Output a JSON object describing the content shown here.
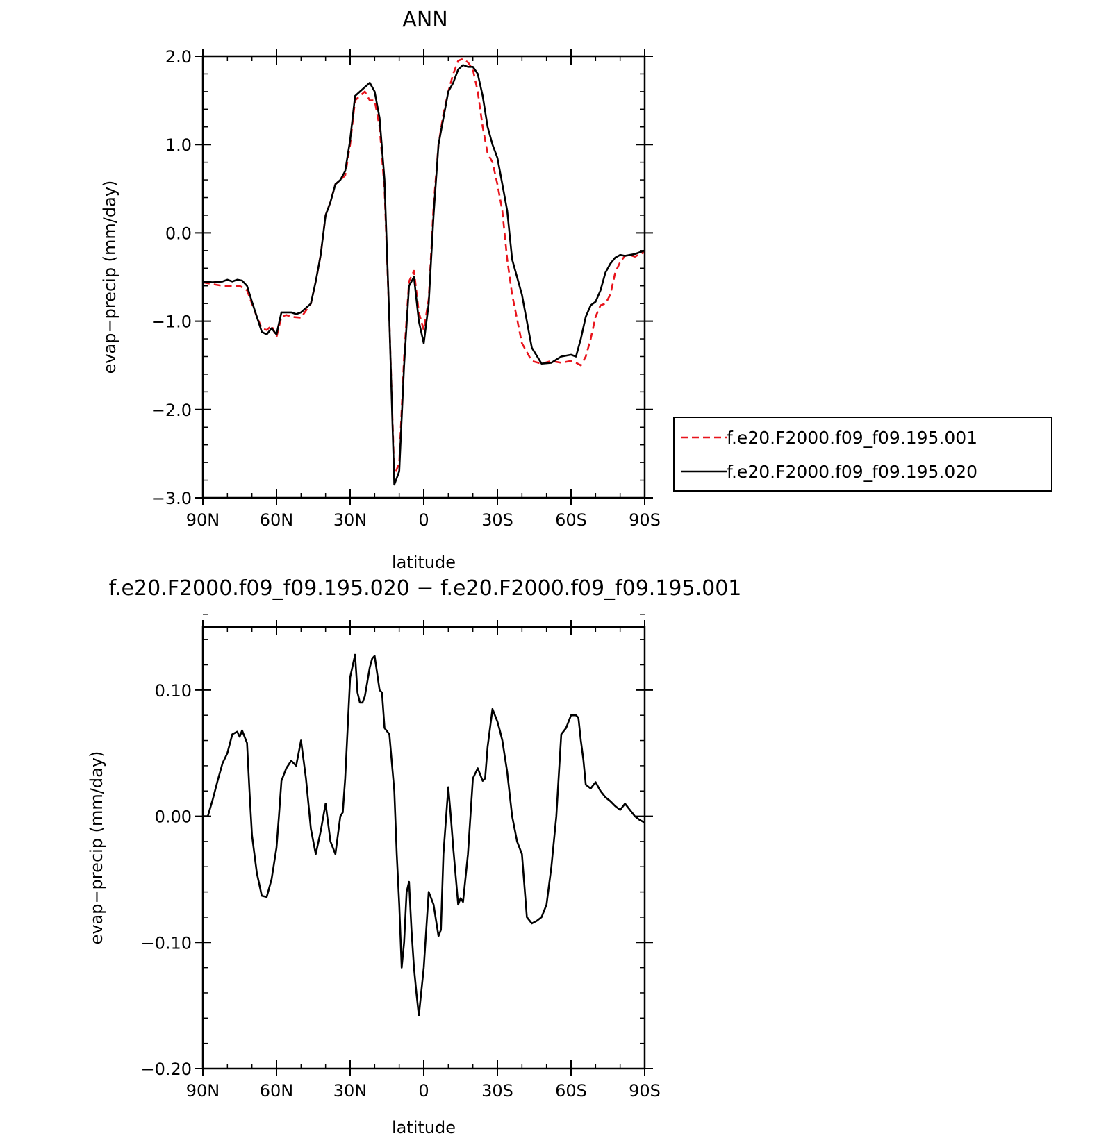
{
  "chart_data": [
    {
      "type": "line",
      "title": "ANN",
      "xlabel": "latitude",
      "ylabel": "evap−precip (mm/day)",
      "xlim": [
        90,
        -90
      ],
      "ylim": [
        -3.0,
        2.0
      ],
      "x_ticks": [
        90,
        60,
        30,
        0,
        -30,
        -60,
        -90
      ],
      "x_tick_labels": [
        "90N",
        "60N",
        "30N",
        "0",
        "30S",
        "60S",
        "90S"
      ],
      "y_ticks": [
        -3.0,
        -2.0,
        -1.0,
        0.0,
        1.0,
        2.0
      ],
      "y_tick_labels": [
        "−3.0",
        "−2.0",
        "−1.0",
        "0.0",
        "1.0",
        "2.0"
      ],
      "grid": false,
      "legend_position": "right",
      "series": [
        {
          "name": "f.e20.F2000.f09_f09.195.001",
          "color": "#e8141c",
          "dash": "dashed",
          "x": [
            90,
            86,
            82,
            78,
            75,
            72,
            70,
            68,
            66,
            64,
            62,
            60,
            58,
            56,
            54,
            50,
            46,
            44,
            42,
            40,
            38,
            36,
            34,
            32,
            30,
            28,
            26,
            24,
            22,
            20,
            18,
            16,
            14,
            12,
            10,
            8,
            6,
            4,
            2,
            0,
            -2,
            -4,
            -6,
            -8,
            -10,
            -12,
            -14,
            -16,
            -18,
            -20,
            -22,
            -24,
            -26,
            -28,
            -30,
            -32,
            -34,
            -36,
            -40,
            -44,
            -48,
            -52,
            -56,
            -60,
            -62,
            -64,
            -66,
            -68,
            -70,
            -72,
            -74,
            -76,
            -78,
            -80,
            -82,
            -84,
            -86,
            -88,
            -90
          ],
          "y": [
            -0.56,
            -0.58,
            -0.6,
            -0.6,
            -0.6,
            -0.65,
            -0.8,
            -0.95,
            -1.08,
            -1.1,
            -1.05,
            -1.18,
            -0.95,
            -0.93,
            -0.95,
            -0.96,
            -0.8,
            -0.55,
            -0.25,
            0.2,
            0.35,
            0.55,
            0.6,
            0.65,
            1.0,
            1.5,
            1.55,
            1.6,
            1.5,
            1.5,
            1.2,
            0.5,
            -1.0,
            -2.75,
            -2.6,
            -1.4,
            -0.55,
            -0.43,
            -0.9,
            -1.1,
            -0.75,
            0.3,
            1.0,
            1.35,
            1.6,
            1.8,
            1.95,
            1.97,
            1.93,
            1.85,
            1.6,
            1.2,
            0.9,
            0.8,
            0.55,
            0.25,
            -0.3,
            -0.7,
            -1.25,
            -1.45,
            -1.48,
            -1.45,
            -1.47,
            -1.45,
            -1.47,
            -1.5,
            -1.4,
            -1.2,
            -0.95,
            -0.82,
            -0.8,
            -0.7,
            -0.45,
            -0.33,
            -0.26,
            -0.25,
            -0.27,
            -0.24,
            -0.22
          ]
        },
        {
          "name": "f.e20.F2000.f09_f09.195.020",
          "color": "#000000",
          "dash": "solid",
          "x": [
            90,
            86,
            82,
            80,
            78,
            76,
            74,
            72,
            70,
            68,
            66,
            64,
            62,
            60,
            58,
            56,
            54,
            52,
            50,
            46,
            44,
            42,
            40,
            38,
            36,
            34,
            32,
            30,
            28,
            26,
            24,
            22,
            20,
            18,
            16,
            14,
            12,
            10,
            8,
            6,
            4,
            2,
            0,
            -2,
            -4,
            -6,
            -8,
            -10,
            -12,
            -14,
            -16,
            -18,
            -20,
            -22,
            -24,
            -26,
            -28,
            -30,
            -32,
            -34,
            -36,
            -40,
            -44,
            -48,
            -52,
            -56,
            -60,
            -62,
            -64,
            -66,
            -68,
            -70,
            -72,
            -74,
            -76,
            -78,
            -80,
            -82,
            -84,
            -86,
            -88,
            -90
          ],
          "y": [
            -0.55,
            -0.56,
            -0.55,
            -0.53,
            -0.55,
            -0.53,
            -0.54,
            -0.6,
            -0.78,
            -0.95,
            -1.12,
            -1.15,
            -1.08,
            -1.15,
            -0.9,
            -0.9,
            -0.9,
            -0.92,
            -0.9,
            -0.8,
            -0.55,
            -0.25,
            0.2,
            0.35,
            0.55,
            0.6,
            0.7,
            1.05,
            1.55,
            1.6,
            1.65,
            1.7,
            1.6,
            1.3,
            0.6,
            -1.0,
            -2.85,
            -2.7,
            -1.5,
            -0.6,
            -0.5,
            -1.0,
            -1.25,
            -0.8,
            0.2,
            1.0,
            1.3,
            1.6,
            1.7,
            1.85,
            1.9,
            1.88,
            1.88,
            1.8,
            1.55,
            1.2,
            1.0,
            0.85,
            0.55,
            0.25,
            -0.3,
            -0.7,
            -1.3,
            -1.48,
            -1.47,
            -1.4,
            -1.38,
            -1.4,
            -1.2,
            -0.95,
            -0.82,
            -0.78,
            -0.65,
            -0.45,
            -0.35,
            -0.28,
            -0.25,
            -0.26,
            -0.25,
            -0.24,
            -0.22,
            -0.2
          ]
        }
      ]
    },
    {
      "type": "line",
      "title": "f.e20.F2000.f09_f09.195.020 − f.e20.F2000.f09_f09.195.001",
      "xlabel": "latitude",
      "ylabel": "evap−precip (mm/day)",
      "xlim": [
        90,
        -90
      ],
      "ylim": [
        -0.2,
        0.15
      ],
      "x_ticks": [
        90,
        60,
        30,
        0,
        -30,
        -60,
        -90
      ],
      "x_tick_labels": [
        "90N",
        "60N",
        "30N",
        "0",
        "30S",
        "60S",
        "90S"
      ],
      "y_ticks": [
        -0.2,
        -0.1,
        0.0,
        0.1
      ],
      "y_tick_labels": [
        "−0.20",
        "−0.10",
        "0.00",
        "0.10"
      ],
      "grid": false,
      "series": [
        {
          "color": "#000000",
          "dash": "solid",
          "x": [
            90,
            88,
            86,
            84,
            82,
            80,
            78,
            76,
            75,
            74,
            72,
            71,
            70,
            68,
            66,
            64,
            62,
            60,
            59,
            58,
            56,
            54,
            52,
            50,
            48,
            46,
            44,
            42,
            40,
            38,
            36,
            34,
            33,
            32,
            30,
            28,
            27,
            26,
            25,
            24,
            22,
            21,
            20,
            18,
            17,
            16,
            14,
            12,
            11,
            10,
            9,
            8,
            7,
            6,
            5,
            4,
            3,
            2,
            0,
            -2,
            -3,
            -4,
            -6,
            -7,
            -8,
            -10,
            -11,
            -12,
            -14,
            -15,
            -16,
            -18,
            -20,
            -22,
            -24,
            -25,
            -26,
            -28,
            -30,
            -31,
            -32,
            -34,
            -36,
            -38,
            -40,
            -42,
            -44,
            -46,
            -48,
            -50,
            -52,
            -54,
            -56,
            -58,
            -60,
            -62,
            -63,
            -64,
            -65,
            -66,
            -68,
            -70,
            -72,
            -74,
            -76,
            -78,
            -80,
            -82,
            -84,
            -86,
            -88,
            -90
          ],
          "y": [
            0.0,
            0.0,
            0.013,
            0.028,
            0.042,
            0.05,
            0.065,
            0.067,
            0.063,
            0.068,
            0.058,
            0.02,
            -0.015,
            -0.045,
            -0.063,
            -0.064,
            -0.05,
            -0.025,
            0.0,
            0.028,
            0.038,
            0.044,
            0.04,
            0.06,
            0.03,
            -0.01,
            -0.03,
            -0.012,
            0.01,
            -0.02,
            -0.03,
            0.0,
            0.003,
            0.03,
            0.11,
            0.128,
            0.098,
            0.09,
            0.09,
            0.095,
            0.118,
            0.125,
            0.127,
            0.1,
            0.098,
            0.07,
            0.065,
            0.02,
            -0.03,
            -0.07,
            -0.12,
            -0.1,
            -0.06,
            -0.052,
            -0.09,
            -0.12,
            -0.14,
            -0.158,
            -0.12,
            -0.06,
            -0.065,
            -0.07,
            -0.095,
            -0.09,
            -0.03,
            0.023,
            0.0,
            -0.025,
            -0.07,
            -0.065,
            -0.068,
            -0.03,
            0.03,
            0.038,
            0.028,
            0.03,
            0.055,
            0.085,
            0.075,
            0.068,
            0.06,
            0.035,
            0.0,
            -0.02,
            -0.03,
            -0.08,
            -0.085,
            -0.083,
            -0.08,
            -0.07,
            -0.04,
            0.0,
            0.065,
            0.07,
            0.08,
            0.08,
            0.078,
            0.06,
            0.045,
            0.025,
            0.022,
            0.027,
            0.02,
            0.015,
            0.012,
            0.008,
            0.005,
            0.01,
            0.005,
            0.0,
            -0.003,
            -0.005
          ]
        }
      ]
    }
  ]
}
